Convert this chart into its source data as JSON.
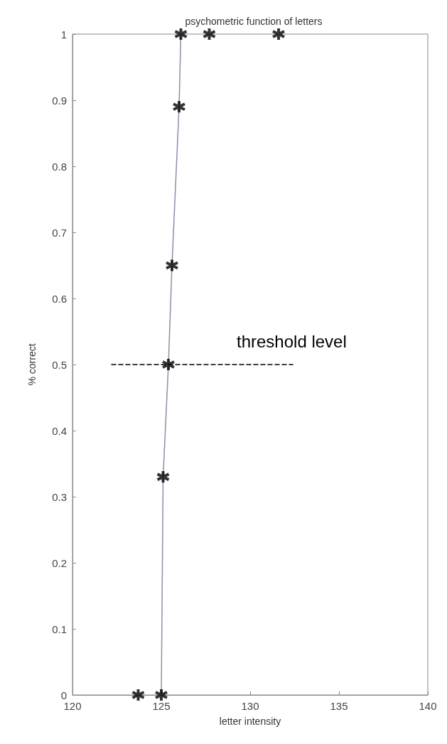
{
  "chart_data": {
    "type": "scatter",
    "title": "psychometric function of letters",
    "xlabel": "letter intensity",
    "ylabel": "% correct",
    "xlim": [
      120,
      140
    ],
    "xticks": [
      120,
      125,
      130,
      135,
      140
    ],
    "ylim": [
      0,
      1
    ],
    "yticks": [
      0,
      0.1,
      0.2,
      0.3,
      0.4,
      0.5,
      0.6,
      0.7,
      0.8,
      0.9,
      1
    ],
    "grid": false,
    "series": [
      {
        "type": "line",
        "color": "#8e8eaa",
        "marker": "none",
        "line_style": "solid",
        "x": [
          125.0,
          125.1,
          125.4,
          125.6,
          126.0,
          126.1
        ],
        "values": [
          0,
          0.33,
          0.5,
          0.65,
          0.89,
          1
        ]
      },
      {
        "color": "#000000",
        "marker": "cross",
        "x": [
          123.7,
          125.0,
          125.1,
          125.4,
          125.6,
          126.0,
          126.1,
          127.7,
          131.6
        ],
        "values": [
          0,
          0,
          0.33,
          0.5,
          0.65,
          0.89,
          1,
          1,
          1
        ]
      },
      {
        "type": "line",
        "color": "#000000",
        "marker": "none",
        "line_style": "dashed",
        "x": [
          122.2,
          132.4
        ],
        "values": [
          0.5,
          0.5
        ]
      }
    ],
    "annotations": [
      "threshold level"
    ]
  }
}
